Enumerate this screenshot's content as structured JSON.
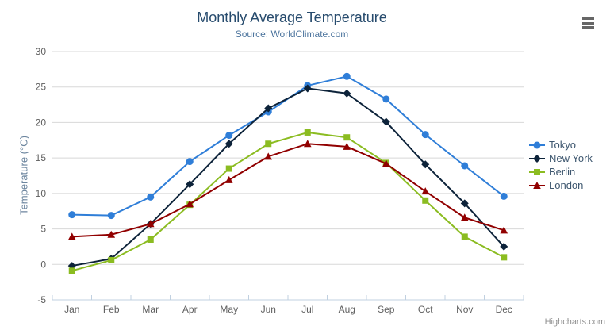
{
  "credits": {
    "label": "Highcharts.com"
  },
  "chart_data": {
    "type": "line",
    "title": "Monthly Average Temperature",
    "subtitle": "Source: WorldClimate.com",
    "xlabel": "",
    "ylabel": "Temperature (°C)",
    "categories": [
      "Jan",
      "Feb",
      "Mar",
      "Apr",
      "May",
      "Jun",
      "Jul",
      "Aug",
      "Sep",
      "Oct",
      "Nov",
      "Dec"
    ],
    "series": [
      {
        "name": "Tokyo",
        "color": "#2f7ed8",
        "marker": "circle",
        "values": [
          7.0,
          6.9,
          9.5,
          14.5,
          18.2,
          21.5,
          25.2,
          26.5,
          23.3,
          18.3,
          13.9,
          9.6
        ]
      },
      {
        "name": "New York",
        "color": "#0d233a",
        "marker": "diamond",
        "values": [
          -0.2,
          0.8,
          5.7,
          11.3,
          17.0,
          22.0,
          24.8,
          24.1,
          20.1,
          14.1,
          8.6,
          2.5
        ]
      },
      {
        "name": "Berlin",
        "color": "#8bbc21",
        "marker": "square",
        "values": [
          -0.9,
          0.6,
          3.5,
          8.4,
          13.5,
          17.0,
          18.6,
          17.9,
          14.3,
          9.0,
          3.9,
          1.0
        ]
      },
      {
        "name": "London",
        "color": "#910000",
        "marker": "triangle",
        "values": [
          3.9,
          4.2,
          5.7,
          8.5,
          11.9,
          15.2,
          17.0,
          16.6,
          14.2,
          10.3,
          6.6,
          4.8
        ]
      }
    ],
    "ylim": [
      -5,
      30
    ],
    "ytick_interval": 5,
    "grid": true,
    "legend_position": "right",
    "style": {
      "title_color": "#274b6d",
      "subtitle_color": "#4d759e",
      "ylabel_color": "#6d869f",
      "label_color": "#606060",
      "grid_color": "#d8d8d8",
      "axis_line_color": "#c0d0e0",
      "legend_text_color": "#3e576f",
      "credits_color": "#909090",
      "burger_color": "#666666"
    }
  }
}
